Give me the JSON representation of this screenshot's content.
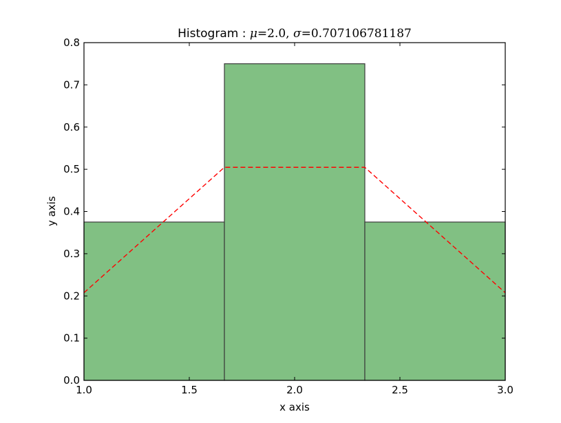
{
  "chart_data": {
    "type": "bar",
    "title": {
      "prefix": "Histogram : ",
      "mu_symbol": "μ",
      "mu_value": "=2.0,",
      "sigma_symbol": "σ",
      "sigma_value": "=0.707106781187"
    },
    "xlabel": "x axis",
    "ylabel": "y axis",
    "xlim": [
      1.0,
      3.0
    ],
    "ylim": [
      0.0,
      0.8
    ],
    "xticks": [
      1.0,
      1.5,
      2.0,
      2.5,
      3.0
    ],
    "xtick_labels": [
      "1.0",
      "1.5",
      "2.0",
      "2.5",
      "3.0"
    ],
    "yticks": [
      0.0,
      0.1,
      0.2,
      0.3,
      0.4,
      0.5,
      0.6,
      0.7,
      0.8
    ],
    "ytick_labels": [
      "0.0",
      "0.1",
      "0.2",
      "0.3",
      "0.4",
      "0.5",
      "0.6",
      "0.7",
      "0.8"
    ],
    "bins": [
      {
        "x0": 1.0,
        "x1": 1.6667,
        "value": 0.375
      },
      {
        "x0": 1.6667,
        "x1": 2.3333,
        "value": 0.75
      },
      {
        "x0": 2.3333,
        "x1": 3.0,
        "value": 0.375
      }
    ],
    "series": [
      {
        "style": "red dashed line",
        "x": [
          1.0,
          1.6667,
          2.3333,
          3.0
        ],
        "y": [
          0.2076,
          0.5047,
          0.5047,
          0.2076
        ]
      }
    ],
    "bar_color": "#81c083",
    "line_color": "#ff0000",
    "grid": false,
    "legend": "none"
  }
}
